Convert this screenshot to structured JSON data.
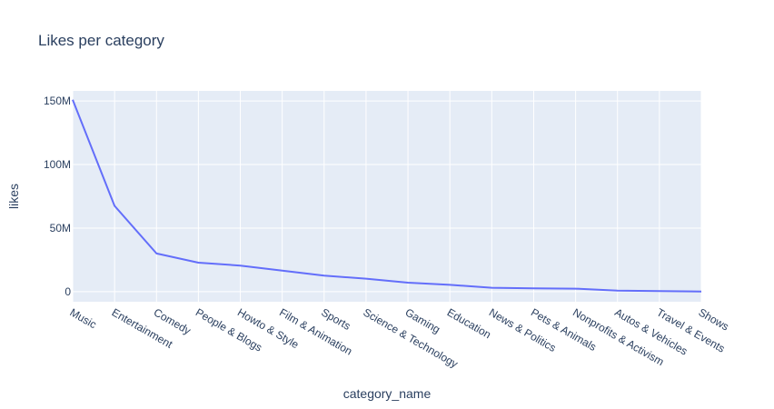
{
  "chart_data": {
    "type": "line",
    "title": "Likes per category",
    "xlabel": "category_name",
    "ylabel": "likes",
    "categories": [
      "Music",
      "Entertainment",
      "Comedy",
      "People & Blogs",
      "Howto & Style",
      "Film & Animation",
      "Sports",
      "Science & Technology",
      "Gaming",
      "Education",
      "News & Politics",
      "Pets & Animals",
      "Nonprofits & Activism",
      "Autos & Vehicles",
      "Travel & Events",
      "Shows"
    ],
    "values": [
      151000000,
      67500000,
      30000000,
      22800000,
      20500000,
      16500000,
      12500000,
      10200000,
      7000000,
      5300000,
      3000000,
      2600000,
      2300000,
      800000,
      400000,
      100000
    ],
    "ylim": [
      -8000000,
      158000000
    ],
    "yticks": [
      0,
      50000000,
      100000000,
      150000000
    ],
    "ytick_labels": [
      "0",
      "50M",
      "100M",
      "150M"
    ],
    "grid": true,
    "colors": {
      "line": "#636efa",
      "plot_bg": "#e5ecf6",
      "grid": "#ffffff",
      "text": "#2a3f5f"
    }
  }
}
